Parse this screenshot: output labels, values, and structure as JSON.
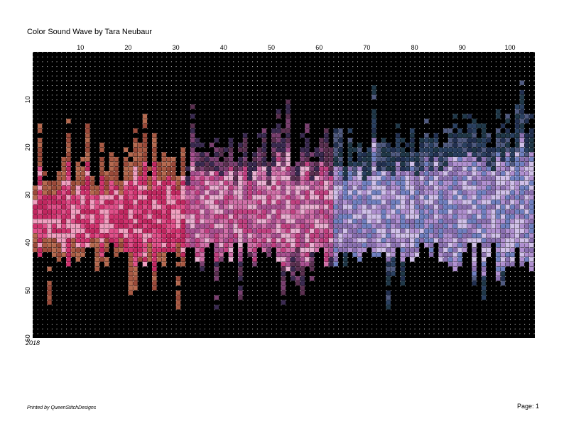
{
  "header": {
    "title": "Color Sound Wave by Tara Neubaur"
  },
  "grid": {
    "column_numbers": [
      10,
      20,
      30,
      40,
      50,
      60,
      70,
      80,
      90,
      100
    ],
    "row_numbers": [
      10,
      20,
      30,
      40,
      50,
      60
    ],
    "year": "2018"
  },
  "footer": {
    "printed_by": "Printed by QueenStitchDesigns",
    "page": "Page: 1"
  }
}
